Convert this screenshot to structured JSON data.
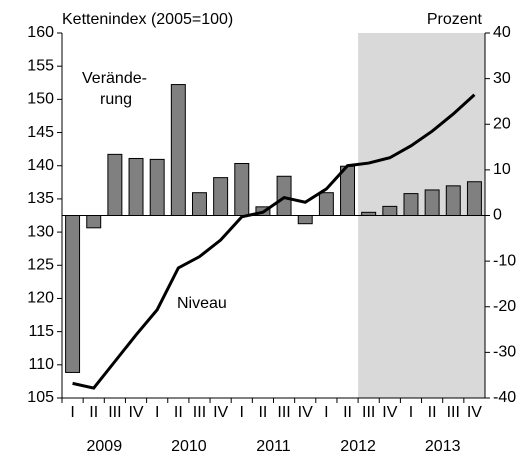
{
  "chart_data": {
    "type": "bar_line",
    "left_axis_label": "Kettenindex (2005=100)",
    "right_axis_label": "Prozent",
    "annotations": {
      "bars": [
        "Verände-",
        "rung"
      ],
      "line": "Niveau"
    },
    "categories": [
      "I",
      "II",
      "III",
      "IV",
      "I",
      "II",
      "III",
      "IV",
      "I",
      "II",
      "III",
      "IV",
      "I",
      "II",
      "III",
      "IV",
      "I",
      "II",
      "III",
      "IV"
    ],
    "years": [
      "2009",
      "2010",
      "2011",
      "2012",
      "2013"
    ],
    "shaded_from": 14,
    "shade_color": "#d9d9d9",
    "series": [
      {
        "name": "Veränderung",
        "type": "bar",
        "axis": "y2",
        "color": "#808080",
        "values": [
          -34.4,
          -2.7,
          13.4,
          12.5,
          12.3,
          28.7,
          5,
          8.3,
          11.4,
          1.9,
          8.6,
          -1.8,
          5,
          10.8,
          0.7,
          2,
          4.8,
          5.6,
          6.5,
          7.4
        ]
      },
      {
        "name": "Niveau",
        "type": "line",
        "axis": "y",
        "color": "#000000",
        "values": [
          107.2,
          106.5,
          110.5,
          114.5,
          118.3,
          124.6,
          126.3,
          128.8,
          132.3,
          133,
          135.2,
          134.5,
          136.5,
          140,
          140.4,
          141.2,
          143,
          145.2,
          147.8,
          150.7
        ]
      }
    ],
    "ylim": [
      105,
      160
    ],
    "yticks": [
      105,
      110,
      115,
      120,
      125,
      130,
      135,
      140,
      145,
      150,
      155,
      160
    ],
    "y2lim": [
      -40,
      40
    ],
    "y2ticks": [
      -40,
      -30,
      -20,
      -10,
      0,
      10,
      20,
      30,
      40
    ]
  }
}
